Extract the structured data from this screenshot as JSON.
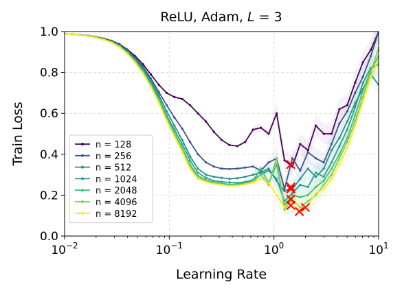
{
  "chart_data": {
    "type": "line",
    "title_parts": {
      "prefix": "ReLU, Adam, ",
      "var": "L",
      "suffix": " = 3"
    },
    "xlabel": "Learning Rate",
    "ylabel": "Train Loss",
    "xscale": "log",
    "xlim": [
      0.01,
      10
    ],
    "ylim": [
      0.0,
      1.0
    ],
    "grid": true,
    "legend_position": "lower-left",
    "x_ticks": [
      {
        "value": 0.01,
        "base": "10",
        "exp": "−2"
      },
      {
        "value": 0.1,
        "base": "10",
        "exp": "−1"
      },
      {
        "value": 1,
        "base": "10",
        "exp": "0"
      },
      {
        "value": 10,
        "base": "10",
        "exp": "1"
      }
    ],
    "y_ticks": [
      {
        "value": 0.0,
        "label": "0.0"
      },
      {
        "value": 0.2,
        "label": "0.2"
      },
      {
        "value": 0.4,
        "label": "0.4"
      },
      {
        "value": 0.6,
        "label": "0.6"
      },
      {
        "value": 0.8,
        "label": "0.8"
      },
      {
        "value": 1.0,
        "label": "1.0"
      }
    ],
    "x": [
      0.01,
      0.0119,
      0.0141,
      0.0168,
      0.02,
      0.0237,
      0.0282,
      0.0335,
      0.0398,
      0.0473,
      0.0562,
      0.0668,
      0.0794,
      0.0944,
      0.112,
      0.133,
      0.158,
      0.188,
      0.224,
      0.266,
      0.316,
      0.376,
      0.447,
      0.531,
      0.631,
      0.75,
      0.891,
      1.06,
      1.26,
      1.5,
      1.78,
      2.11,
      2.51,
      2.99,
      3.55,
      4.22,
      5.01,
      5.96,
      7.08,
      8.41,
      10
    ],
    "series": [
      {
        "name": "n = 128",
        "color": "#440154",
        "values": [
          0.99,
          0.987,
          0.984,
          0.98,
          0.974,
          0.966,
          0.955,
          0.938,
          0.912,
          0.88,
          0.84,
          0.79,
          0.74,
          0.7,
          0.68,
          0.67,
          0.64,
          0.6,
          0.56,
          0.51,
          0.47,
          0.445,
          0.44,
          0.46,
          0.52,
          0.53,
          0.5,
          0.6,
          0.37,
          0.34,
          0.45,
          0.42,
          0.54,
          0.5,
          0.5,
          0.62,
          0.64,
          0.75,
          0.85,
          0.91,
          1.0
        ],
        "min_marker": {
          "x": 1.45,
          "y": 0.35
        }
      },
      {
        "name": "n = 256",
        "color": "#3b528b",
        "values": [
          0.99,
          0.987,
          0.984,
          0.98,
          0.974,
          0.965,
          0.954,
          0.936,
          0.908,
          0.872,
          0.828,
          0.77,
          0.705,
          0.64,
          0.58,
          0.525,
          0.46,
          0.4,
          0.36,
          0.34,
          0.33,
          0.328,
          0.33,
          0.335,
          0.34,
          0.32,
          0.36,
          0.38,
          0.23,
          0.38,
          0.32,
          0.41,
          0.38,
          0.36,
          0.45,
          0.55,
          0.61,
          0.7,
          0.78,
          0.88,
          1.0
        ],
        "min_marker": {
          "x": 1.45,
          "y": 0.24
        }
      },
      {
        "name": "n = 512",
        "color": "#21918c",
        "values": [
          0.99,
          0.987,
          0.983,
          0.979,
          0.973,
          0.964,
          0.952,
          0.933,
          0.904,
          0.866,
          0.82,
          0.76,
          0.69,
          0.61,
          0.54,
          0.47,
          0.39,
          0.33,
          0.3,
          0.29,
          0.285,
          0.28,
          0.283,
          0.29,
          0.3,
          0.31,
          0.33,
          0.27,
          0.22,
          0.23,
          0.28,
          0.33,
          0.29,
          0.33,
          0.42,
          0.48,
          0.56,
          0.65,
          0.72,
          0.79,
          0.74
        ],
        "min_marker": {
          "x": 1.45,
          "y": 0.23
        }
      },
      {
        "name": "n = 1024",
        "color": "#2a9d8f",
        "values": [
          0.99,
          0.987,
          0.983,
          0.979,
          0.972,
          0.963,
          0.95,
          0.93,
          0.9,
          0.86,
          0.812,
          0.75,
          0.676,
          0.59,
          0.52,
          0.45,
          0.37,
          0.31,
          0.285,
          0.27,
          0.265,
          0.262,
          0.26,
          0.265,
          0.275,
          0.3,
          0.32,
          0.28,
          0.17,
          0.21,
          0.25,
          0.24,
          0.31,
          0.29,
          0.36,
          0.44,
          0.52,
          0.63,
          0.75,
          0.82,
          0.84
        ],
        "min_marker": {
          "x": 1.45,
          "y": 0.18
        }
      },
      {
        "name": "n = 2048",
        "color": "#44bf70",
        "values": [
          0.99,
          0.987,
          0.983,
          0.978,
          0.971,
          0.962,
          0.948,
          0.928,
          0.897,
          0.855,
          0.806,
          0.742,
          0.668,
          0.58,
          0.505,
          0.432,
          0.35,
          0.295,
          0.275,
          0.262,
          0.258,
          0.252,
          0.255,
          0.26,
          0.27,
          0.33,
          0.26,
          0.35,
          0.15,
          0.2,
          0.19,
          0.2,
          0.24,
          0.27,
          0.33,
          0.4,
          0.48,
          0.59,
          0.71,
          0.81,
          0.88
        ],
        "min_marker": {
          "x": 1.45,
          "y": 0.15
        }
      },
      {
        "name": "n = 4096",
        "color": "#7ad151",
        "values": [
          0.99,
          0.987,
          0.983,
          0.978,
          0.971,
          0.961,
          0.947,
          0.926,
          0.894,
          0.852,
          0.8,
          0.736,
          0.66,
          0.572,
          0.496,
          0.422,
          0.34,
          0.285,
          0.27,
          0.258,
          0.25,
          0.246,
          0.248,
          0.255,
          0.265,
          0.3,
          0.25,
          0.38,
          0.13,
          0.18,
          0.14,
          0.17,
          0.2,
          0.25,
          0.3,
          0.38,
          0.46,
          0.56,
          0.68,
          0.8,
          0.92
        ],
        "min_marker": {
          "x": 1.75,
          "y": 0.12
        }
      },
      {
        "name": "n = 8192",
        "color": "#fde725",
        "values": [
          0.99,
          0.987,
          0.983,
          0.978,
          0.97,
          0.96,
          0.946,
          0.924,
          0.891,
          0.848,
          0.795,
          0.73,
          0.652,
          0.564,
          0.488,
          0.412,
          0.33,
          0.28,
          0.265,
          0.255,
          0.25,
          0.245,
          0.246,
          0.252,
          0.262,
          0.28,
          0.26,
          0.2,
          0.14,
          0.19,
          0.13,
          0.15,
          0.21,
          0.23,
          0.28,
          0.35,
          0.43,
          0.54,
          0.66,
          0.78,
          0.86
        ],
        "min_marker": {
          "x": 2.0,
          "y": 0.14
        }
      }
    ],
    "min_marker_color": "#ff0000"
  }
}
